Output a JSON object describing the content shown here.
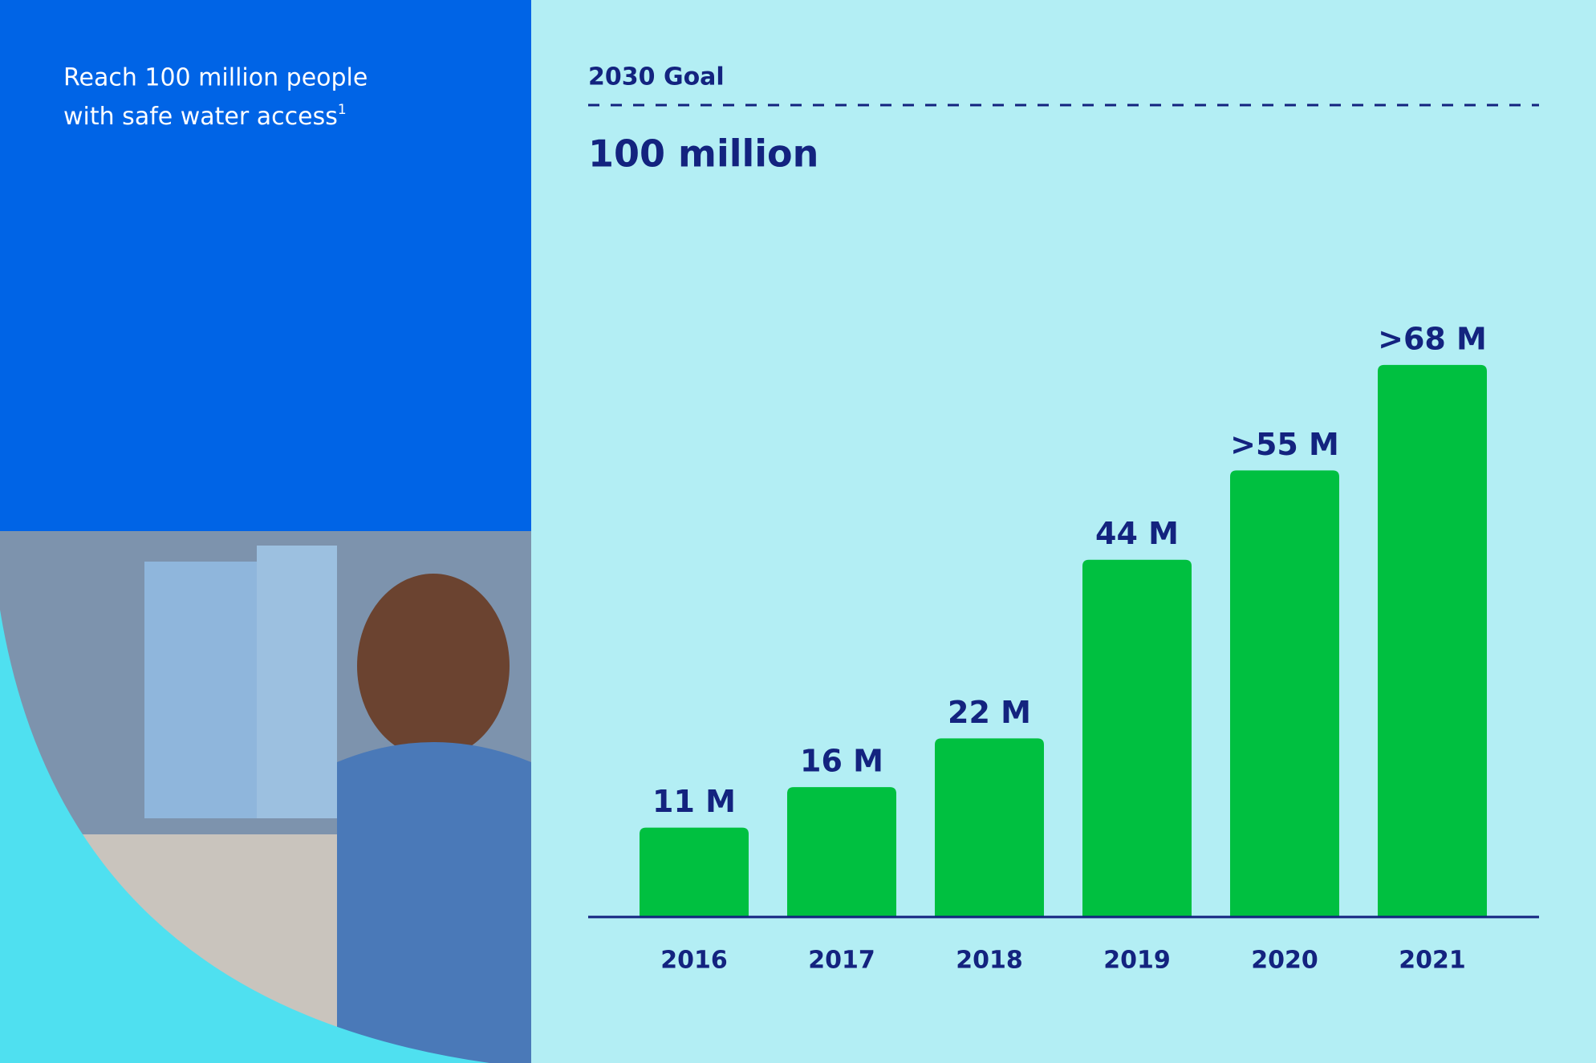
{
  "chart_data": {
    "type": "bar",
    "title_lines": [
      "Reach 100 million people",
      "with safe water access"
    ],
    "footnote_mark": "1",
    "goal": {
      "label": "2030 Goal",
      "value": 100,
      "value_label": "100 million"
    },
    "categories": [
      "2016",
      "2017",
      "2018",
      "2019",
      "2020",
      "2021"
    ],
    "values": [
      11,
      16,
      22,
      44,
      55,
      68
    ],
    "value_labels": [
      "11 M",
      "16 M",
      "22 M",
      "44 M",
      ">55 M",
      ">68 M"
    ],
    "color": "#00c040",
    "ylim": [
      0,
      100
    ]
  }
}
